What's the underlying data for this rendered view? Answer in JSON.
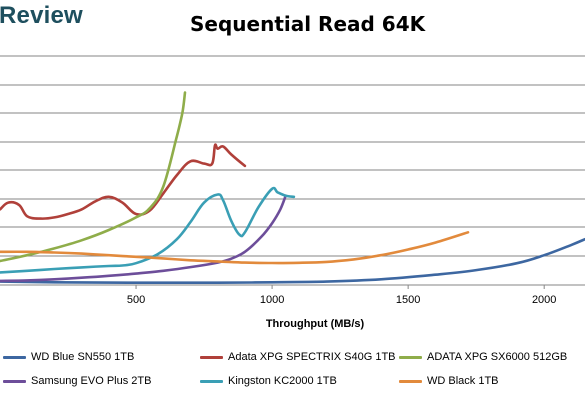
{
  "brand": {
    "text": "Review"
  },
  "chart_data": {
    "type": "line",
    "title": "Sequential Read 64K",
    "xlabel": "Throughput (MB/s)",
    "ylabel": "",
    "xlim": [
      0,
      2150
    ],
    "x_ticks": [
      500,
      1000,
      1500,
      2000
    ],
    "ylim": [
      0,
      10
    ],
    "grid": "horizontal",
    "legend_position": "bottom",
    "series": [
      {
        "name": "WD Blue SN550 1TB",
        "color": "#3d67a1",
        "points": [
          [
            0,
            0.15
          ],
          [
            200,
            0.12
          ],
          [
            500,
            0.1
          ],
          [
            800,
            0.1
          ],
          [
            1000,
            0.12
          ],
          [
            1200,
            0.15
          ],
          [
            1400,
            0.25
          ],
          [
            1600,
            0.45
          ],
          [
            1750,
            0.65
          ],
          [
            1900,
            0.95
          ],
          [
            2000,
            1.3
          ],
          [
            2100,
            1.75
          ],
          [
            2150,
            2.0
          ]
        ]
      },
      {
        "name": "Adata XPG SPECTRIX S40G 1TB",
        "color": "#b0403a",
        "points": [
          [
            0,
            3.3
          ],
          [
            30,
            3.6
          ],
          [
            70,
            3.5
          ],
          [
            100,
            3.0
          ],
          [
            150,
            2.9
          ],
          [
            200,
            2.95
          ],
          [
            250,
            3.1
          ],
          [
            300,
            3.3
          ],
          [
            350,
            3.65
          ],
          [
            400,
            3.85
          ],
          [
            450,
            3.6
          ],
          [
            500,
            3.1
          ],
          [
            550,
            3.25
          ],
          [
            600,
            4.0
          ],
          [
            650,
            4.8
          ],
          [
            700,
            5.4
          ],
          [
            750,
            5.3
          ],
          [
            780,
            5.3
          ],
          [
            790,
            6.1
          ],
          [
            800,
            5.95
          ],
          [
            820,
            6.05
          ],
          [
            850,
            5.7
          ],
          [
            900,
            5.2
          ]
        ]
      },
      {
        "name": "ADATA XPG SX6000 512GB",
        "color": "#8fad4a",
        "points": [
          [
            0,
            1.05
          ],
          [
            100,
            1.3
          ],
          [
            200,
            1.6
          ],
          [
            300,
            1.95
          ],
          [
            400,
            2.4
          ],
          [
            500,
            2.95
          ],
          [
            550,
            3.35
          ],
          [
            600,
            4.3
          ],
          [
            650,
            6.5
          ],
          [
            670,
            7.5
          ],
          [
            680,
            8.4
          ]
        ]
      },
      {
        "name": "Samsung EVO Plus 2TB",
        "color": "#6d4e9a",
        "points": [
          [
            0,
            0.18
          ],
          [
            100,
            0.2
          ],
          [
            200,
            0.25
          ],
          [
            300,
            0.32
          ],
          [
            400,
            0.4
          ],
          [
            500,
            0.5
          ],
          [
            600,
            0.62
          ],
          [
            700,
            0.78
          ],
          [
            800,
            0.98
          ],
          [
            850,
            1.15
          ],
          [
            900,
            1.45
          ],
          [
            960,
            2.1
          ],
          [
            1000,
            2.7
          ],
          [
            1030,
            3.3
          ],
          [
            1050,
            3.9
          ]
        ]
      },
      {
        "name": "Kingston KC2000 1TB",
        "color": "#3a9fb5",
        "points": [
          [
            0,
            0.55
          ],
          [
            100,
            0.62
          ],
          [
            200,
            0.7
          ],
          [
            300,
            0.77
          ],
          [
            400,
            0.83
          ],
          [
            450,
            0.85
          ],
          [
            500,
            0.95
          ],
          [
            580,
            1.35
          ],
          [
            650,
            2.0
          ],
          [
            700,
            2.75
          ],
          [
            750,
            3.6
          ],
          [
            800,
            3.95
          ],
          [
            820,
            3.7
          ],
          [
            850,
            2.8
          ],
          [
            880,
            2.2
          ],
          [
            900,
            2.3
          ],
          [
            950,
            3.4
          ],
          [
            1000,
            4.2
          ],
          [
            1020,
            4.05
          ],
          [
            1050,
            3.9
          ],
          [
            1080,
            3.85
          ]
        ]
      },
      {
        "name": "WD Black 1TB",
        "color": "#e28a3c",
        "points": [
          [
            0,
            1.45
          ],
          [
            100,
            1.45
          ],
          [
            200,
            1.42
          ],
          [
            300,
            1.37
          ],
          [
            400,
            1.3
          ],
          [
            500,
            1.23
          ],
          [
            600,
            1.16
          ],
          [
            700,
            1.08
          ],
          [
            800,
            1.03
          ],
          [
            900,
            0.98
          ],
          [
            1000,
            0.96
          ],
          [
            1100,
            0.97
          ],
          [
            1200,
            1.01
          ],
          [
            1300,
            1.12
          ],
          [
            1400,
            1.3
          ],
          [
            1500,
            1.55
          ],
          [
            1600,
            1.85
          ],
          [
            1720,
            2.3
          ]
        ]
      }
    ]
  }
}
